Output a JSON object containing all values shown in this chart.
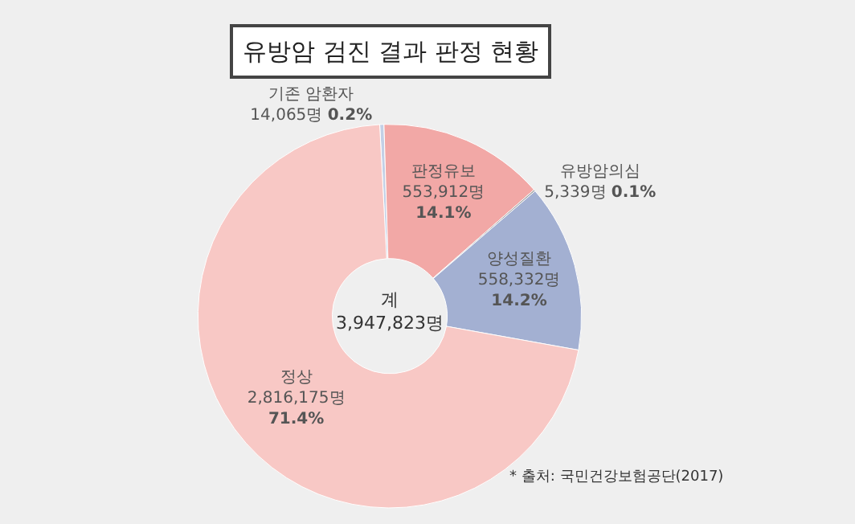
{
  "chart_data": {
    "type": "donut",
    "title": "유방암 검진 결과 판정 현황",
    "categories": [
      "기존 암환자",
      "판정유보",
      "유방암의심",
      "양성질환",
      "정상"
    ],
    "values": [
      14065,
      553912,
      5339,
      558332,
      2816175
    ],
    "value_labels": [
      "14,065명 0.2%",
      "553,912명 14.1%",
      "5,339명 0.1%",
      "558,332명 14.2%",
      "2,816,175명 71.4%"
    ],
    "colors": [
      "#c3d0e6",
      "#f2a8a6",
      "#9a9a9a",
      "#a3b0d2",
      "#f8c8c5"
    ],
    "annotations": [
      "계\n3,947,823명",
      "* 출처: 국민건강보험공단(2017)"
    ],
    "legend": false
  }
}
